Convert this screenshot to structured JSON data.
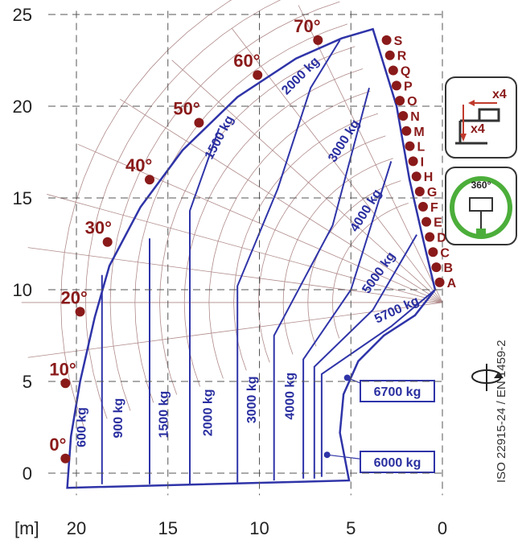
{
  "chart_data": {
    "type": "load-chart",
    "x_unit_label": "[m]",
    "x_ticks": [
      20,
      15,
      10,
      5,
      0
    ],
    "y_ticks": [
      0,
      5,
      10,
      15,
      20,
      25
    ],
    "xlim": [
      21.5,
      -0.5
    ],
    "ylim": [
      -1.2,
      25.2
    ],
    "boom_angles": [
      {
        "label": "0°",
        "deg": 0
      },
      {
        "label": "10°",
        "deg": 10
      },
      {
        "label": "20°",
        "deg": 20
      },
      {
        "label": "30°",
        "deg": 30
      },
      {
        "label": "40°",
        "deg": 40
      },
      {
        "label": "50°",
        "deg": 50
      },
      {
        "label": "60°",
        "deg": 60
      },
      {
        "label": "70°",
        "deg": 70
      }
    ],
    "extension_letters": [
      "A",
      "B",
      "C",
      "D",
      "E",
      "F",
      "G",
      "H",
      "I",
      "L",
      "M",
      "N",
      "O",
      "P",
      "Q",
      "R",
      "S"
    ],
    "capacity_zones": [
      {
        "label": "600 kg",
        "x": 19.5,
        "y": 2.5,
        "rot": -90
      },
      {
        "label": "900 kg",
        "x": 17.5,
        "y": 3.0,
        "rot": -90
      },
      {
        "label": "1500 kg",
        "x": 15.0,
        "y": 3.2,
        "rot": -90
      },
      {
        "label": "2000 kg",
        "x": 12.6,
        "y": 3.3,
        "rot": -90
      },
      {
        "label": "3000 kg",
        "x": 10.2,
        "y": 4.0,
        "rot": -90
      },
      {
        "label": "4000 kg",
        "x": 8.1,
        "y": 4.2,
        "rot": -90
      },
      {
        "label": "1500 kg",
        "x": 12.0,
        "y": 18.2,
        "rot": -62
      },
      {
        "label": "2000 kg",
        "x": 7.6,
        "y": 21.5,
        "rot": -45
      },
      {
        "label": "3000 kg",
        "x": 5.2,
        "y": 18.0,
        "rot": -58
      },
      {
        "label": "4000 kg",
        "x": 4.0,
        "y": 14.2,
        "rot": -58
      },
      {
        "label": "5000 kg",
        "x": 3.3,
        "y": 10.8,
        "rot": -55
      },
      {
        "label": "5700 kg",
        "x": 2.4,
        "y": 8.7,
        "rot": -25
      }
    ],
    "boxed_loads": [
      {
        "label": "6700 kg",
        "point_x": 5.2,
        "point_y": 5.2
      },
      {
        "label": "6000 kg",
        "point_x": 6.3,
        "point_y": 1.0
      }
    ],
    "standard_label": "ISO 22915-24  / EN 1459-2",
    "icon_labels": {
      "x4_top": "x4",
      "x4_side": "x4",
      "rotation": "360°"
    },
    "colors": {
      "envelope": "#2f34a8",
      "angle_marker": "#8a1a1a",
      "grid": "#b08a8a",
      "axis": "#555555",
      "icon_ring": "#4cae3a"
    }
  }
}
